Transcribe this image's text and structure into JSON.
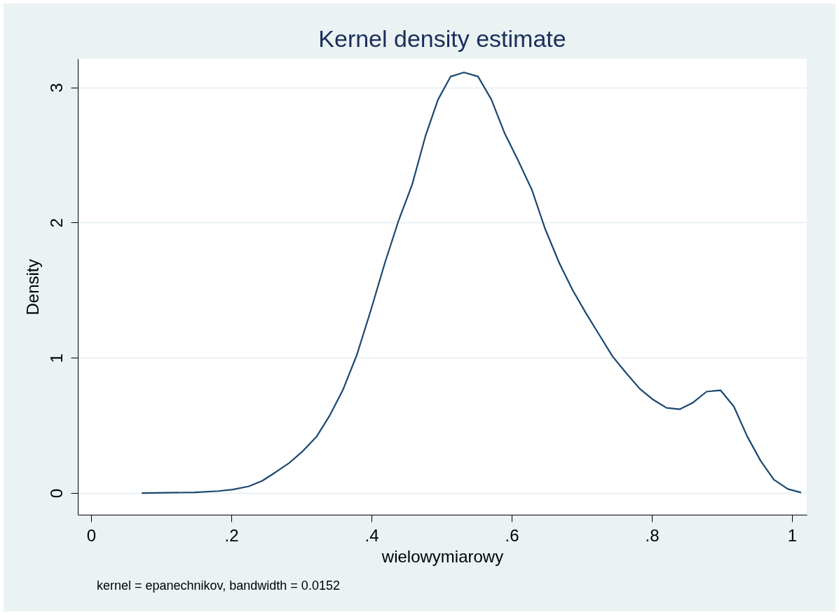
{
  "chart_data": {
    "type": "line",
    "title": "Kernel density estimate",
    "xlabel": "wielowymiarowy",
    "ylabel": "Density",
    "annotations": [
      "kernel = epanechnikov, bandwidth = 0.0152"
    ],
    "x": [
      0.073,
      0.148,
      0.182,
      0.202,
      0.225,
      0.244,
      0.262,
      0.282,
      0.302,
      0.322,
      0.34,
      0.359,
      0.379,
      0.399,
      0.419,
      0.439,
      0.458,
      0.477,
      0.495,
      0.513,
      0.532,
      0.552,
      0.571,
      0.59,
      0.61,
      0.629,
      0.648,
      0.668,
      0.687,
      0.706,
      0.725,
      0.744,
      0.763,
      0.783,
      0.802,
      0.821,
      0.84,
      0.859,
      0.878,
      0.898,
      0.917,
      0.936,
      0.955,
      0.974,
      0.994,
      1.012
    ],
    "series": [
      {
        "color": "#1a476f",
        "values": [
          0,
          0.005,
          0.015,
          0.026,
          0.05,
          0.09,
          0.15,
          0.22,
          0.31,
          0.42,
          0.57,
          0.76,
          1.02,
          1.35,
          1.7,
          2.02,
          2.28,
          2.64,
          2.91,
          3.08,
          3.11,
          3.08,
          2.91,
          2.66,
          2.45,
          2.24,
          1.95,
          1.7,
          1.5,
          1.33,
          1.17,
          1.01,
          0.89,
          0.77,
          0.69,
          0.63,
          0.62,
          0.67,
          0.75,
          0.76,
          0.64,
          0.42,
          0.24,
          0.1,
          0.03,
          0.005
        ]
      }
    ],
    "xlim": [
      -0.019,
      1.021
    ],
    "ylim": [
      -0.16,
      3.21
    ],
    "xticks": [
      0,
      {
        "value": 0.2,
        "label": ".2"
      },
      {
        "value": 0.4,
        "label": ".4"
      },
      {
        "value": 0.6,
        "label": ".6"
      },
      {
        "value": 0.8,
        "label": ".8"
      },
      1
    ],
    "yticks": [
      0,
      1,
      2,
      3
    ],
    "grid": "y",
    "marker": "none",
    "line_style": "solid"
  }
}
